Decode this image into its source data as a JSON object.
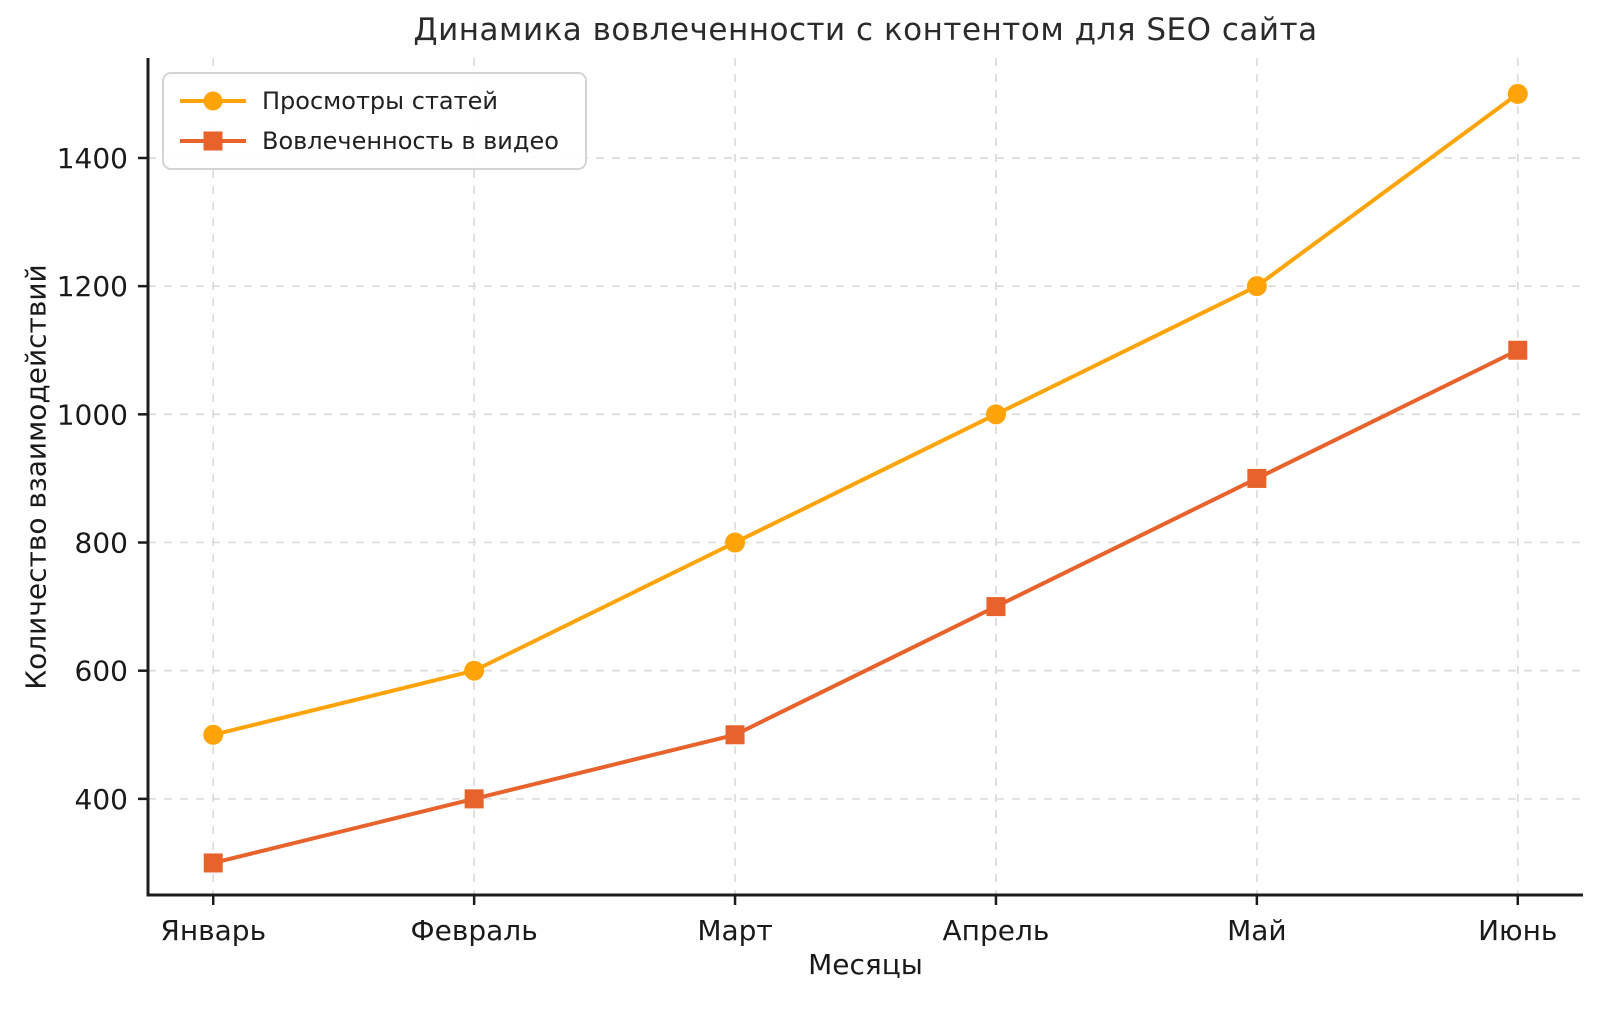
{
  "figure": {
    "title": "Динамика вовлеченности с контентом для SEO сайта",
    "xlabel": "Месяцы",
    "ylabel": "Количество взаимодействий"
  },
  "chart_data": {
    "type": "line",
    "title": "Динамика вовлеченности с контентом для SEO сайта",
    "xlabel": "Месяцы",
    "ylabel": "Количество взаимодействий",
    "categories": [
      "Январь",
      "Февраль",
      "Март",
      "Апрель",
      "Май",
      "Июнь"
    ],
    "series": [
      {
        "name": "Просмотры статей",
        "marker": "circle",
        "color": "#FFA408",
        "values": [
          500,
          600,
          800,
          1000,
          1200,
          1500
        ]
      },
      {
        "name": "Вовлеченность в видео",
        "marker": "square",
        "color": "#E8622C",
        "values": [
          300,
          400,
          500,
          700,
          900,
          1100
        ]
      }
    ],
    "yticks": [
      400,
      600,
      800,
      1000,
      1200,
      1400
    ],
    "ylim": [
      250,
      1556
    ],
    "grid": true,
    "grid_style": "dashed",
    "legend_position": "upper-left"
  },
  "style": {
    "background": "#ffffff",
    "grid_color": "#d9d9d9",
    "axis_color": "#1c1c1c",
    "tick_text_color": "#1a1a1a",
    "title_color": "#2b2b2b"
  }
}
